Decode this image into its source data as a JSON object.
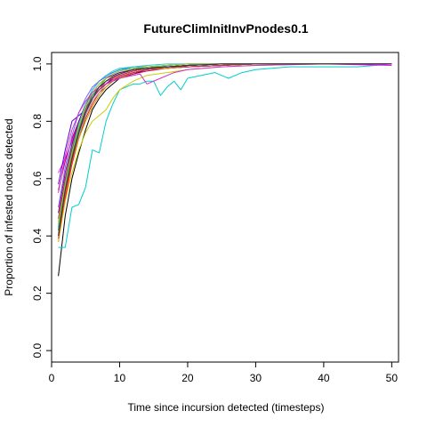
{
  "chart_data": {
    "type": "line",
    "title": "FutureClimInitInvPnodes0.1",
    "xlabel": "Time since incursion detected (timesteps)",
    "ylabel": "Proportion of infested nodes detected",
    "xlim": [
      0,
      51
    ],
    "ylim": [
      -0.04,
      1.04
    ],
    "xticks": [
      0,
      10,
      20,
      30,
      40,
      50
    ],
    "yticks": [
      0.0,
      0.2,
      0.4,
      0.6,
      0.8,
      1.0
    ],
    "xtick_labels": [
      "0",
      "10",
      "20",
      "30",
      "40",
      "50"
    ],
    "ytick_labels": [
      "0.0",
      "0.2",
      "0.4",
      "0.6",
      "0.8",
      "1.0"
    ],
    "grid": false,
    "legend": "none",
    "series": [
      {
        "color": "#000000",
        "x": [
          1,
          2,
          3,
          4,
          5,
          6,
          7,
          8,
          9,
          10,
          12,
          14,
          17,
          20,
          25,
          30,
          40,
          50
        ],
        "values": [
          0.26,
          0.47,
          0.6,
          0.69,
          0.77,
          0.84,
          0.88,
          0.91,
          0.93,
          0.95,
          0.965,
          0.98,
          0.985,
          0.99,
          0.995,
          1.0,
          1.0,
          1.0
        ]
      },
      {
        "color": "#e41a1c",
        "x": [
          1,
          2,
          3,
          4,
          5,
          6,
          7,
          8,
          9,
          10,
          12,
          14,
          17,
          20,
          25,
          30,
          40,
          50
        ],
        "values": [
          0.38,
          0.53,
          0.65,
          0.74,
          0.81,
          0.86,
          0.9,
          0.92,
          0.94,
          0.955,
          0.97,
          0.98,
          0.985,
          0.99,
          0.995,
          1.0,
          1.0,
          1.0
        ]
      },
      {
        "color": "#00cd00",
        "x": [
          1,
          2,
          3,
          4,
          5,
          6,
          7,
          8,
          9,
          10,
          12,
          14,
          17,
          20,
          25,
          30,
          40,
          50
        ],
        "values": [
          0.42,
          0.58,
          0.69,
          0.78,
          0.84,
          0.89,
          0.92,
          0.95,
          0.96,
          0.97,
          0.98,
          0.99,
          0.99,
          0.995,
          1.0,
          1.0,
          1.0,
          1.0
        ]
      },
      {
        "color": "#0000ff",
        "x": [
          1,
          2,
          3,
          4,
          5,
          6,
          7,
          8,
          9,
          10,
          12,
          14,
          17,
          20,
          25,
          30,
          40,
          50
        ],
        "values": [
          0.4,
          0.57,
          0.68,
          0.77,
          0.83,
          0.88,
          0.91,
          0.93,
          0.95,
          0.96,
          0.975,
          0.985,
          0.99,
          0.995,
          1.0,
          1.0,
          1.0,
          1.0
        ]
      },
      {
        "color": "#00cdcd",
        "x": [
          1,
          2,
          3,
          4,
          5,
          6,
          7,
          8,
          9,
          10,
          11,
          12,
          13,
          14,
          15,
          16,
          17,
          18,
          19,
          20,
          22,
          24,
          26,
          28,
          30,
          35,
          40,
          45,
          50
        ],
        "values": [
          0.36,
          0.36,
          0.5,
          0.51,
          0.57,
          0.7,
          0.69,
          0.8,
          0.86,
          0.91,
          0.92,
          0.93,
          0.93,
          0.94,
          0.94,
          0.89,
          0.92,
          0.94,
          0.91,
          0.95,
          0.96,
          0.97,
          0.95,
          0.97,
          0.98,
          0.99,
          0.99,
          0.99,
          1.0
        ]
      },
      {
        "color": "#ff00ff",
        "x": [
          1,
          2,
          3,
          4,
          5,
          6,
          7,
          8,
          9,
          10,
          12,
          14,
          17,
          20,
          25,
          30,
          40,
          50
        ],
        "values": [
          0.62,
          0.67,
          0.73,
          0.8,
          0.86,
          0.89,
          0.92,
          0.94,
          0.95,
          0.96,
          0.975,
          0.985,
          0.99,
          0.99,
          0.995,
          1.0,
          1.0,
          0.995
        ]
      },
      {
        "color": "#cdcd00",
        "x": [
          1,
          2,
          3,
          4,
          5,
          6,
          7,
          8,
          9,
          10,
          12,
          14,
          17,
          20,
          25,
          30,
          40,
          50
        ],
        "values": [
          0.38,
          0.52,
          0.62,
          0.7,
          0.76,
          0.8,
          0.82,
          0.84,
          0.88,
          0.91,
          0.94,
          0.96,
          0.97,
          0.98,
          0.99,
          0.995,
          1.0,
          1.0
        ]
      },
      {
        "color": "#9e9e9e",
        "x": [
          1,
          2,
          3,
          4,
          5,
          6,
          7,
          8,
          9,
          10,
          12,
          14,
          17,
          20,
          25,
          30,
          40,
          50
        ],
        "values": [
          0.4,
          0.55,
          0.66,
          0.75,
          0.82,
          0.87,
          0.9,
          0.93,
          0.95,
          0.96,
          0.975,
          0.985,
          0.99,
          0.995,
          1.0,
          1.0,
          1.0,
          1.0
        ]
      },
      {
        "color": "#5d00cd",
        "x": [
          1,
          2,
          3,
          4,
          5,
          6,
          7,
          8,
          9,
          10,
          12,
          14,
          17,
          20,
          25,
          30,
          40,
          50
        ],
        "values": [
          0.58,
          0.7,
          0.8,
          0.82,
          0.84,
          0.88,
          0.91,
          0.93,
          0.95,
          0.96,
          0.975,
          0.985,
          0.99,
          0.995,
          1.0,
          1.0,
          1.0,
          1.0
        ]
      },
      {
        "color": "#cd0066",
        "x": [
          1,
          2,
          3,
          4,
          5,
          6,
          7,
          8,
          9,
          10,
          12,
          14,
          17,
          20,
          25,
          30,
          40,
          50
        ],
        "values": [
          0.56,
          0.66,
          0.74,
          0.8,
          0.85,
          0.88,
          0.91,
          0.93,
          0.94,
          0.95,
          0.965,
          0.975,
          0.985,
          0.99,
          0.995,
          1.0,
          1.0,
          1.0
        ]
      },
      {
        "color": "#00cd66",
        "x": [
          1,
          2,
          3,
          4,
          5,
          6,
          7,
          8,
          9,
          10,
          12,
          14,
          17,
          20,
          25,
          30,
          40,
          50
        ],
        "values": [
          0.44,
          0.6,
          0.71,
          0.8,
          0.86,
          0.91,
          0.94,
          0.96,
          0.97,
          0.98,
          0.985,
          0.99,
          0.995,
          1.0,
          1.0,
          1.0,
          1.0,
          1.0
        ]
      },
      {
        "color": "#1e90ff",
        "x": [
          1,
          2,
          3,
          4,
          5,
          6,
          7,
          8,
          9,
          10,
          12,
          14,
          17,
          20,
          25,
          30,
          40,
          50
        ],
        "values": [
          0.43,
          0.59,
          0.7,
          0.79,
          0.86,
          0.91,
          0.94,
          0.96,
          0.97,
          0.98,
          0.99,
          0.99,
          0.995,
          1.0,
          1.0,
          1.0,
          1.0,
          1.0
        ]
      },
      {
        "color": "#cd9b00",
        "x": [
          1,
          2,
          3,
          4,
          5,
          6,
          7,
          8,
          9,
          10,
          12,
          14,
          17,
          20,
          25,
          30,
          40,
          50
        ],
        "values": [
          0.45,
          0.56,
          0.66,
          0.74,
          0.8,
          0.85,
          0.89,
          0.92,
          0.94,
          0.95,
          0.97,
          0.98,
          0.985,
          0.99,
          0.995,
          1.0,
          1.0,
          1.0
        ]
      },
      {
        "color": "#8b008b",
        "x": [
          1,
          2,
          3,
          4,
          5,
          6,
          7,
          8,
          9,
          10,
          12,
          14,
          17,
          20,
          25,
          30,
          40,
          50
        ],
        "values": [
          0.48,
          0.62,
          0.72,
          0.8,
          0.86,
          0.9,
          0.93,
          0.95,
          0.96,
          0.97,
          0.98,
          0.985,
          0.99,
          0.995,
          1.0,
          1.0,
          1.0,
          1.0
        ]
      },
      {
        "color": "#36c9c9",
        "x": [
          1,
          2,
          3,
          4,
          5,
          6,
          7,
          8,
          9,
          10,
          12,
          14,
          17,
          20,
          25,
          30,
          40,
          50
        ],
        "values": [
          0.41,
          0.57,
          0.69,
          0.79,
          0.86,
          0.91,
          0.94,
          0.96,
          0.975,
          0.985,
          0.99,
          0.995,
          1.0,
          1.0,
          1.0,
          1.0,
          1.0,
          1.0
        ]
      },
      {
        "color": "#ff3030",
        "x": [
          1,
          2,
          3,
          4,
          5,
          6,
          7,
          8,
          9,
          10,
          12,
          14,
          17,
          20,
          25,
          30,
          40,
          50
        ],
        "values": [
          0.39,
          0.54,
          0.66,
          0.76,
          0.83,
          0.88,
          0.91,
          0.94,
          0.95,
          0.96,
          0.975,
          0.985,
          0.99,
          0.995,
          1.0,
          1.0,
          1.0,
          1.0
        ]
      },
      {
        "color": "#2e8b57",
        "x": [
          1,
          2,
          3,
          4,
          5,
          6,
          7,
          8,
          9,
          10,
          12,
          14,
          17,
          20,
          25,
          30,
          40,
          50
        ],
        "values": [
          0.42,
          0.57,
          0.68,
          0.77,
          0.84,
          0.89,
          0.92,
          0.94,
          0.955,
          0.965,
          0.98,
          0.985,
          0.99,
          0.995,
          1.0,
          1.0,
          1.0,
          1.0
        ]
      },
      {
        "color": "#7a67ee",
        "x": [
          1,
          2,
          3,
          4,
          5,
          6,
          7,
          8,
          9,
          10,
          12,
          14,
          17,
          20,
          25,
          30,
          40,
          50
        ],
        "values": [
          0.5,
          0.64,
          0.75,
          0.83,
          0.88,
          0.92,
          0.94,
          0.955,
          0.965,
          0.975,
          0.985,
          0.99,
          0.995,
          1.0,
          1.0,
          1.0,
          1.0,
          1.0
        ]
      },
      {
        "color": "#b03060",
        "x": [
          1,
          2,
          3,
          4,
          5,
          6,
          7,
          8,
          9,
          10,
          12,
          14,
          17,
          20,
          25,
          30,
          40,
          50
        ],
        "values": [
          0.46,
          0.6,
          0.7,
          0.78,
          0.84,
          0.88,
          0.91,
          0.93,
          0.945,
          0.955,
          0.97,
          0.98,
          0.99,
          0.99,
          0.995,
          1.0,
          1.0,
          1.0
        ]
      },
      {
        "color": "#9acd32",
        "x": [
          1,
          2,
          3,
          4,
          5,
          6,
          7,
          8,
          9,
          10,
          12,
          14,
          17,
          20,
          25,
          30,
          40,
          50
        ],
        "values": [
          0.44,
          0.58,
          0.69,
          0.78,
          0.85,
          0.9,
          0.93,
          0.95,
          0.965,
          0.975,
          0.985,
          0.99,
          0.995,
          1.0,
          1.0,
          1.0,
          1.0,
          1.0
        ]
      },
      {
        "color": "#cc33cc",
        "x": [
          1,
          2,
          3,
          4,
          5,
          6,
          7,
          8,
          9,
          10,
          11,
          12,
          13,
          14,
          16,
          18,
          20,
          25,
          30,
          40,
          50
        ],
        "values": [
          0.55,
          0.68,
          0.77,
          0.83,
          0.87,
          0.9,
          0.92,
          0.93,
          0.94,
          0.95,
          0.955,
          0.96,
          0.965,
          0.93,
          0.95,
          0.97,
          0.98,
          0.99,
          0.995,
          1.0,
          1.0
        ]
      },
      {
        "color": "#333333",
        "x": [
          1,
          2,
          3,
          4,
          5,
          6,
          7,
          8,
          9,
          10,
          12,
          14,
          17,
          20,
          25,
          30,
          40,
          50
        ],
        "values": [
          0.4,
          0.56,
          0.67,
          0.76,
          0.83,
          0.88,
          0.92,
          0.94,
          0.955,
          0.965,
          0.98,
          0.985,
          0.99,
          0.995,
          1.0,
          1.0,
          1.0,
          1.0
        ]
      }
    ]
  }
}
